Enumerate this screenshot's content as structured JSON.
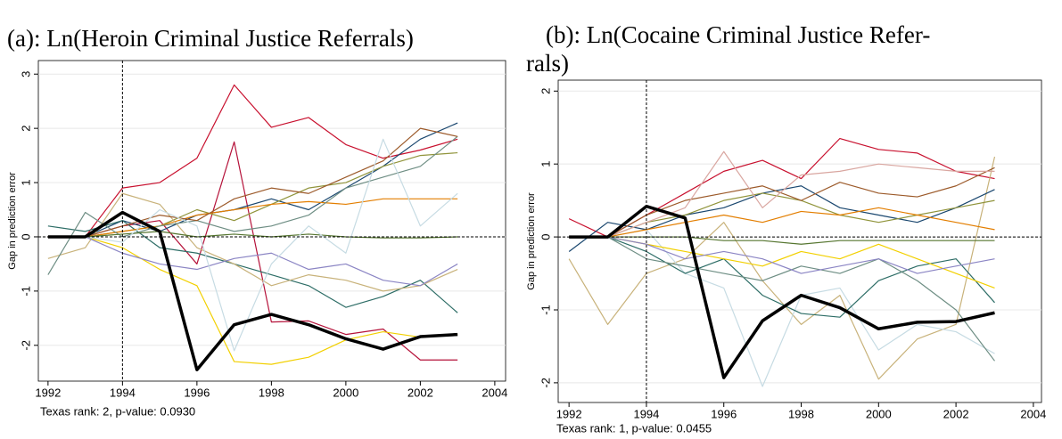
{
  "chart_data": [
    {
      "type": "line",
      "title": "(a): Ln(Heroin Criminal Justice Referrals)",
      "y_label": "Gap in prediction error",
      "note": "Texas rank: 2, p-value: 0.0930",
      "x": [
        1992,
        1993,
        1994,
        1995,
        1996,
        1997,
        1998,
        1999,
        2000,
        2001,
        2002,
        2003
      ],
      "xlim": [
        1991.74,
        2004.29
      ],
      "xticks": [
        1992,
        1994,
        1996,
        1998,
        2000,
        2002,
        2004
      ],
      "ylim": [
        -2.66,
        3.25
      ],
      "yticks": [
        -2,
        -1,
        0,
        1,
        2,
        3
      ],
      "grid": true,
      "vline": 1994,
      "hline": 0,
      "series": [
        {
          "color": "#c8102e",
          "values": [
            0,
            0,
            0.9,
            1,
            1.45,
            2.8,
            2.02,
            2.2,
            1.7,
            1.45,
            1.6,
            1.8
          ]
        },
        {
          "color": "#b5123a",
          "values": [
            0,
            0,
            0.2,
            0.3,
            -0.5,
            1.75,
            -1.57,
            -1.55,
            -1.8,
            -1.7,
            -2.27,
            -2.27
          ]
        },
        {
          "color": "#f2d000",
          "values": [
            0,
            0,
            -0.2,
            -0.6,
            -0.9,
            -2.3,
            -2.35,
            -2.22,
            -1.9,
            -1.75,
            -1.85,
            -1.8
          ]
        },
        {
          "color": "#1a476f",
          "values": [
            0,
            0,
            0.3,
            0.1,
            0.4,
            0.5,
            0.7,
            0.5,
            0.9,
            1.3,
            1.8,
            2.1
          ]
        },
        {
          "color": "#90943b",
          "values": [
            0,
            0,
            0.1,
            0.2,
            0.5,
            0.3,
            0.6,
            0.9,
            1.0,
            1.3,
            1.5,
            1.55
          ]
        },
        {
          "color": "#2d6d66",
          "values": [
            0.2,
            0.1,
            0.3,
            -0.2,
            -0.3,
            -0.5,
            -0.7,
            -0.9,
            -1.3,
            -1.1,
            -0.8,
            -1.4
          ]
        },
        {
          "color": "#e37e00",
          "values": [
            0,
            0,
            0.1,
            0.2,
            0.4,
            0.5,
            0.6,
            0.65,
            0.6,
            0.7,
            0.7,
            0.7
          ]
        },
        {
          "color": "#c8b27a",
          "values": [
            -0.4,
            -0.2,
            0.8,
            0.6,
            -0.2,
            -0.5,
            -0.9,
            -0.7,
            -0.8,
            -1.0,
            -0.9,
            -0.6
          ]
        },
        {
          "color": "#6e8e84",
          "values": [
            -0.7,
            0.45,
            0,
            0.2,
            0.3,
            0.1,
            0.2,
            0.4,
            0.9,
            1.1,
            1.3,
            1.85
          ]
        },
        {
          "color": "#9c5a2a",
          "values": [
            0,
            0,
            0.2,
            0.4,
            0.3,
            0.7,
            0.9,
            0.8,
            1.1,
            1.4,
            2.0,
            1.85
          ]
        },
        {
          "color": "#8b85c4",
          "values": [
            0,
            0,
            -0.3,
            -0.5,
            -0.6,
            -0.4,
            -0.3,
            -0.6,
            -0.5,
            -0.8,
            -0.9,
            -0.5
          ]
        },
        {
          "color": "#55752f",
          "values": [
            0,
            0,
            0.05,
            0.1,
            0,
            0.05,
            0,
            0.05,
            0,
            -0.02,
            -0.02,
            0
          ]
        },
        {
          "color": "#c6dbe3",
          "values": [
            0,
            0,
            -0.1,
            0.5,
            0.2,
            -2.1,
            -0.5,
            0.2,
            -0.3,
            1.8,
            0.2,
            0.8
          ]
        },
        {
          "color": "#000000",
          "width": 3.5,
          "values": [
            0,
            0,
            0.45,
            0.1,
            -2.45,
            -1.62,
            -1.43,
            -1.62,
            -1.88,
            -2.07,
            -1.84,
            -1.8
          ]
        }
      ]
    },
    {
      "type": "line",
      "title_lines": [
        "(b): Ln(Cocaine Criminal Justice Refer-",
        "rals)"
      ],
      "y_label": "Gap in prediction error",
      "note": "Texas rank: 1, p-value: 0.0455",
      "x": [
        1992,
        1993,
        1994,
        1995,
        1996,
        1997,
        1998,
        1999,
        2000,
        2001,
        2002,
        2003
      ],
      "xlim": [
        1991.72,
        2004.21
      ],
      "xticks": [
        1992,
        1994,
        1996,
        1998,
        2000,
        2002,
        2004
      ],
      "ylim": [
        -2.27,
        2.15
      ],
      "yticks": [
        -2,
        -1,
        0,
        1,
        2
      ],
      "grid": true,
      "vline": 1994,
      "hline": 0,
      "series": [
        {
          "color": "#c8102e",
          "values": [
            0.25,
            0,
            0.3,
            0.6,
            0.9,
            1.05,
            0.8,
            1.35,
            1.2,
            1.15,
            0.9,
            0.8
          ]
        },
        {
          "color": "#c8b27a",
          "values": [
            -0.3,
            -1.2,
            -0.5,
            -0.3,
            0.2,
            -0.6,
            -1.2,
            -0.8,
            -1.95,
            -1.4,
            -1.2,
            1.1
          ]
        },
        {
          "color": "#c6dbe3",
          "values": [
            0,
            0,
            0.1,
            -0.5,
            -0.7,
            -2.05,
            -0.8,
            -0.7,
            -1.55,
            -1.2,
            -1.3,
            -1.6
          ]
        },
        {
          "color": "#1a476f",
          "values": [
            -0.2,
            0.2,
            0.1,
            0.3,
            0.4,
            0.6,
            0.7,
            0.4,
            0.3,
            0.2,
            0.4,
            0.65
          ]
        },
        {
          "color": "#90943b",
          "values": [
            0,
            0,
            0.2,
            0.3,
            0.5,
            0.6,
            0.5,
            0.3,
            0.2,
            0.3,
            0.4,
            0.5
          ]
        },
        {
          "color": "#2d6d66",
          "values": [
            0,
            0,
            -0.2,
            -0.5,
            -0.3,
            -0.8,
            -1.05,
            -1.1,
            -0.6,
            -0.4,
            -0.3,
            -0.9
          ]
        },
        {
          "color": "#e37e00",
          "values": [
            0,
            0,
            0.1,
            0.2,
            0.3,
            0.2,
            0.35,
            0.3,
            0.4,
            0.3,
            0.2,
            0.1
          ]
        },
        {
          "color": "#f2d000",
          "values": [
            0,
            0,
            -0.1,
            -0.2,
            -0.3,
            -0.4,
            -0.2,
            -0.3,
            -0.1,
            -0.3,
            -0.5,
            -0.7
          ]
        },
        {
          "color": "#6e8e84",
          "values": [
            0,
            0,
            -0.3,
            -0.4,
            -0.5,
            -0.6,
            -0.4,
            -0.5,
            -0.3,
            -0.6,
            -1.0,
            -1.7
          ]
        },
        {
          "color": "#9c5a2a",
          "values": [
            0,
            0,
            0.3,
            0.5,
            0.6,
            0.7,
            0.5,
            0.75,
            0.6,
            0.55,
            0.7,
            0.95
          ]
        },
        {
          "color": "#8b85c4",
          "values": [
            0,
            0,
            -0.1,
            -0.3,
            -0.2,
            -0.3,
            -0.5,
            -0.4,
            -0.3,
            -0.5,
            -0.4,
            -0.3
          ]
        },
        {
          "color": "#55752f",
          "values": [
            0,
            0,
            0,
            0,
            -0.05,
            -0.05,
            -0.1,
            -0.05,
            -0.05,
            -0.05,
            -0.05,
            -0.05
          ]
        },
        {
          "color": "#d9a6a0",
          "values": [
            0,
            0,
            0.2,
            0.4,
            1.17,
            0.4,
            0.85,
            0.9,
            1.0,
            0.95,
            0.9,
            0.9
          ]
        },
        {
          "color": "#000000",
          "width": 3.5,
          "values": [
            0,
            0,
            0.42,
            0.26,
            -1.93,
            -1.15,
            -0.8,
            -0.97,
            -1.26,
            -1.17,
            -1.16,
            -1.04
          ]
        }
      ]
    }
  ]
}
